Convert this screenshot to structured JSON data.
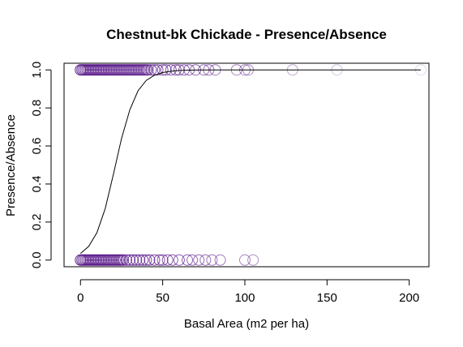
{
  "chart_data": {
    "type": "scatter",
    "title": "Chestnut-bk Chickade - Presence/Absence",
    "xlabel": "Basal Area (m2 per ha)",
    "ylabel": "Presence/Absence",
    "xlim": [
      -10,
      212
    ],
    "ylim": [
      -0.035,
      1.035
    ],
    "x_ticks": [
      "0",
      "50",
      "100",
      "150",
      "200"
    ],
    "y_ticks": [
      "0.0",
      "0.2",
      "0.4",
      "0.6",
      "0.8",
      "1.0"
    ],
    "grid": false,
    "legend": "none",
    "point_color": "#5a1a8a",
    "line_color": "#000000",
    "series": [
      {
        "type": "scatter",
        "x": [
          0,
          1,
          2,
          3,
          4,
          5,
          6,
          7,
          8,
          9,
          10,
          11,
          12,
          13,
          14,
          15,
          16,
          17,
          18,
          19,
          20,
          21,
          22,
          23,
          24,
          25,
          26,
          27,
          28,
          29,
          30,
          31,
          32,
          33,
          34,
          35,
          36,
          37,
          38,
          39,
          40,
          41,
          43,
          45,
          47,
          50,
          52,
          55,
          58,
          60,
          63,
          66,
          70,
          75,
          78,
          82,
          95,
          100,
          102,
          129,
          156,
          207
        ],
        "y": [
          1,
          1,
          1,
          1,
          1,
          1,
          1,
          1,
          1,
          1,
          1,
          1,
          1,
          1,
          1,
          1,
          1,
          1,
          1,
          1,
          1,
          1,
          1,
          1,
          1,
          1,
          1,
          1,
          1,
          1,
          1,
          1,
          1,
          1,
          1,
          1,
          1,
          1,
          1,
          1,
          1,
          1,
          1,
          1,
          1,
          1,
          1,
          1,
          1,
          1,
          1,
          1,
          1,
          1,
          1,
          1,
          1,
          1,
          1,
          1,
          1,
          1
        ]
      },
      {
        "type": "scatter",
        "x": [
          0,
          1,
          2,
          3,
          4,
          5,
          6,
          7,
          8,
          9,
          10,
          11,
          12,
          13,
          14,
          15,
          16,
          17,
          18,
          19,
          20,
          21,
          22,
          23,
          24,
          25,
          26,
          28,
          30,
          32,
          34,
          36,
          38,
          40,
          42,
          45,
          48,
          50,
          53,
          56,
          60,
          65,
          68,
          72,
          76,
          80,
          85,
          100,
          105
        ],
        "y": [
          0,
          0,
          0,
          0,
          0,
          0,
          0,
          0,
          0,
          0,
          0,
          0,
          0,
          0,
          0,
          0,
          0,
          0,
          0,
          0,
          0,
          0,
          0,
          0,
          0,
          0,
          0,
          0,
          0,
          0,
          0,
          0,
          0,
          0,
          0,
          0,
          0,
          0,
          0,
          0,
          0,
          0,
          0,
          0,
          0,
          0,
          0,
          0,
          0
        ]
      },
      {
        "type": "line",
        "x": [
          0,
          5,
          10,
          15,
          20,
          25,
          30,
          35,
          40,
          45,
          50,
          55,
          60,
          70,
          80,
          100,
          150,
          207
        ],
        "y": [
          0.035,
          0.072,
          0.144,
          0.27,
          0.45,
          0.64,
          0.79,
          0.89,
          0.945,
          0.972,
          0.986,
          0.993,
          0.997,
          0.999,
          1.0,
          1.0,
          1.0,
          1.0
        ]
      }
    ]
  }
}
